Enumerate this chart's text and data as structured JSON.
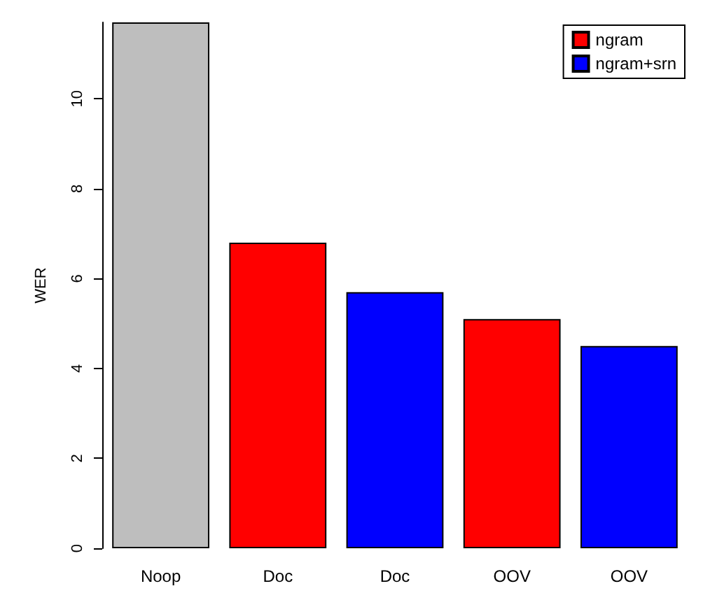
{
  "chart_data": {
    "type": "bar",
    "ylabel": "WER",
    "categories": [
      "Noop",
      "Doc",
      "Doc",
      "OOV",
      "OOV"
    ],
    "series": [
      {
        "color": "#bebebe",
        "values": [
          11.7,
          null,
          null,
          null,
          null
        ]
      },
      {
        "name": "ngram",
        "color": "#ff0000",
        "values": [
          null,
          6.8,
          null,
          5.1,
          null
        ]
      },
      {
        "name": "ngram+srn",
        "color": "#0000ff",
        "values": [
          null,
          null,
          5.7,
          null,
          4.5
        ]
      }
    ],
    "ylim": [
      0,
      11.7
    ],
    "yticks": [
      0,
      2,
      4,
      6,
      8,
      10
    ],
    "grid": false,
    "legend": "top right"
  }
}
